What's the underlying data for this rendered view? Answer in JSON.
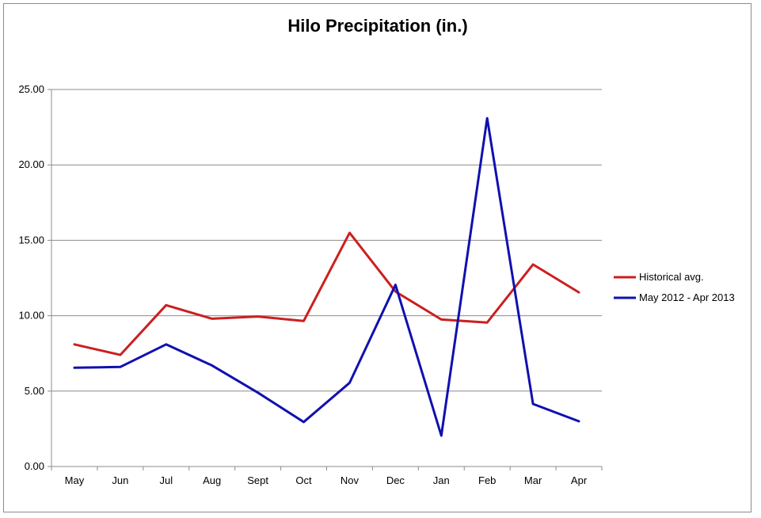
{
  "chart_data": {
    "type": "line",
    "title": "Hilo Precipitation (in.)",
    "xlabel": "",
    "ylabel": "",
    "categories": [
      "May",
      "Jun",
      "Jul",
      "Aug",
      "Sept",
      "Oct",
      "Nov",
      "Dec",
      "Jan",
      "Feb",
      "Mar",
      "Apr"
    ],
    "ylim": [
      0,
      25
    ],
    "yticks": [
      "0.00",
      "5.00",
      "10.00",
      "15.00",
      "20.00",
      "25.00"
    ],
    "grid": true,
    "legend_position": "right",
    "series": [
      {
        "name": "Historical avg.",
        "color": "#cc1f1f",
        "values": [
          8.1,
          7.4,
          10.7,
          9.8,
          9.95,
          9.65,
          15.5,
          11.6,
          9.75,
          9.55,
          13.4,
          11.55
        ]
      },
      {
        "name": "May 2012 - Apr 2013",
        "color": "#1010b0",
        "values": [
          6.55,
          6.6,
          8.1,
          6.7,
          4.9,
          2.95,
          5.55,
          12.05,
          2.05,
          23.1,
          4.15,
          3.0
        ]
      }
    ]
  }
}
